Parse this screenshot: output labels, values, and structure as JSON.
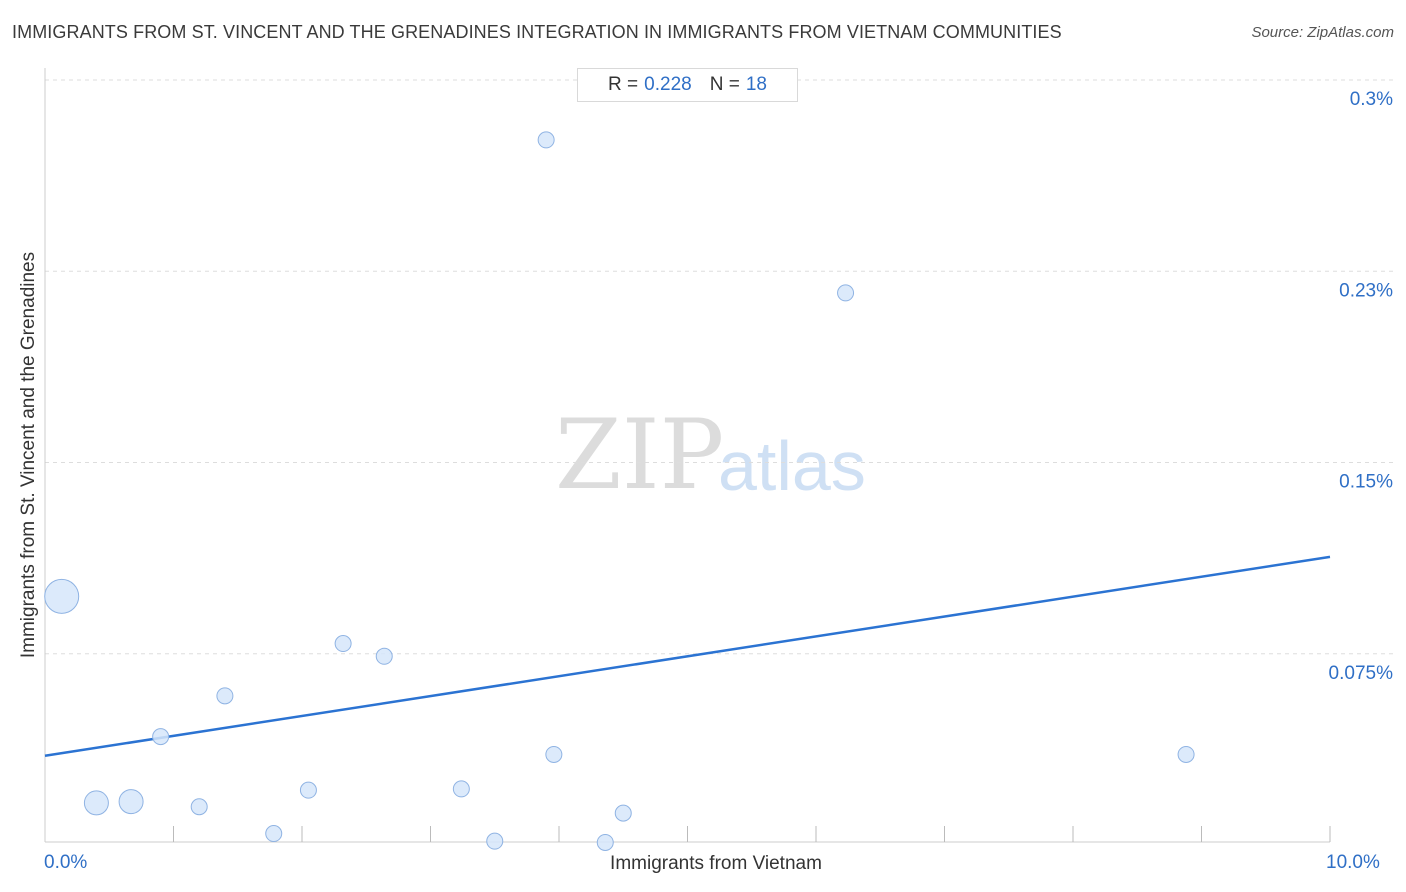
{
  "chart_data": {
    "type": "scatter",
    "title": "IMMIGRANTS FROM ST. VINCENT AND THE GRENADINES INTEGRATION IN IMMIGRANTS FROM VIETNAM COMMUNITIES",
    "source": "Source: ZipAtlas.com",
    "xlabel": "Immigrants from Vietnam",
    "ylabel": "Immigrants from St. Vincent and the Grenadines",
    "stats": {
      "r_label": "R =",
      "r_value": "0.228",
      "n_label": "N =",
      "n_value": "18"
    },
    "xlim": [
      0,
      10
    ],
    "ylim": [
      0,
      0.3
    ],
    "x_tick_labels": [
      {
        "value": 0,
        "label": "0.0%"
      },
      {
        "value": 10,
        "label": "10.0%"
      }
    ],
    "y_ticks": [
      {
        "value": 0.075,
        "label": "0.075%"
      },
      {
        "value": 0.15,
        "label": "0.15%"
      },
      {
        "value": 0.225,
        "label": "0.23%"
      },
      {
        "value": 0.3,
        "label": "0.3%"
      }
    ],
    "grid": "horizontal dashed",
    "trendline": {
      "x": [
        0,
        10
      ],
      "y": [
        0.035,
        0.113
      ]
    },
    "points": [
      {
        "x": 0.13,
        "y": 0.0975,
        "size": 3
      },
      {
        "x": 0.4,
        "y": 0.0165,
        "size": 2
      },
      {
        "x": 0.67,
        "y": 0.017,
        "size": 2
      },
      {
        "x": 0.9,
        "y": 0.0425,
        "size": 1
      },
      {
        "x": 1.2,
        "y": 0.015,
        "size": 1
      },
      {
        "x": 1.4,
        "y": 0.0585,
        "size": 1
      },
      {
        "x": 1.78,
        "y": 0.0045,
        "size": 1
      },
      {
        "x": 2.05,
        "y": 0.0215,
        "size": 1
      },
      {
        "x": 2.32,
        "y": 0.079,
        "size": 1
      },
      {
        "x": 2.64,
        "y": 0.074,
        "size": 1
      },
      {
        "x": 3.24,
        "y": 0.022,
        "size": 1
      },
      {
        "x": 3.5,
        "y": 0.0015,
        "size": 1
      },
      {
        "x": 3.9,
        "y": 0.2765,
        "size": 1
      },
      {
        "x": 3.96,
        "y": 0.0355,
        "size": 1
      },
      {
        "x": 4.36,
        "y": 0.001,
        "size": 1
      },
      {
        "x": 4.5,
        "y": 0.0125,
        "size": 1
      },
      {
        "x": 6.23,
        "y": 0.2165,
        "size": 1
      },
      {
        "x": 8.88,
        "y": 0.0355,
        "size": 1
      }
    ],
    "colors": {
      "point_fill": "#d6e6fa",
      "point_stroke": "#8fb3e3",
      "trend": "#2b73d2",
      "tick_text": "#2f6fc6",
      "grid": "#dddddd"
    },
    "watermark": {
      "zip": "ZIP",
      "atlas": "atlas"
    }
  }
}
